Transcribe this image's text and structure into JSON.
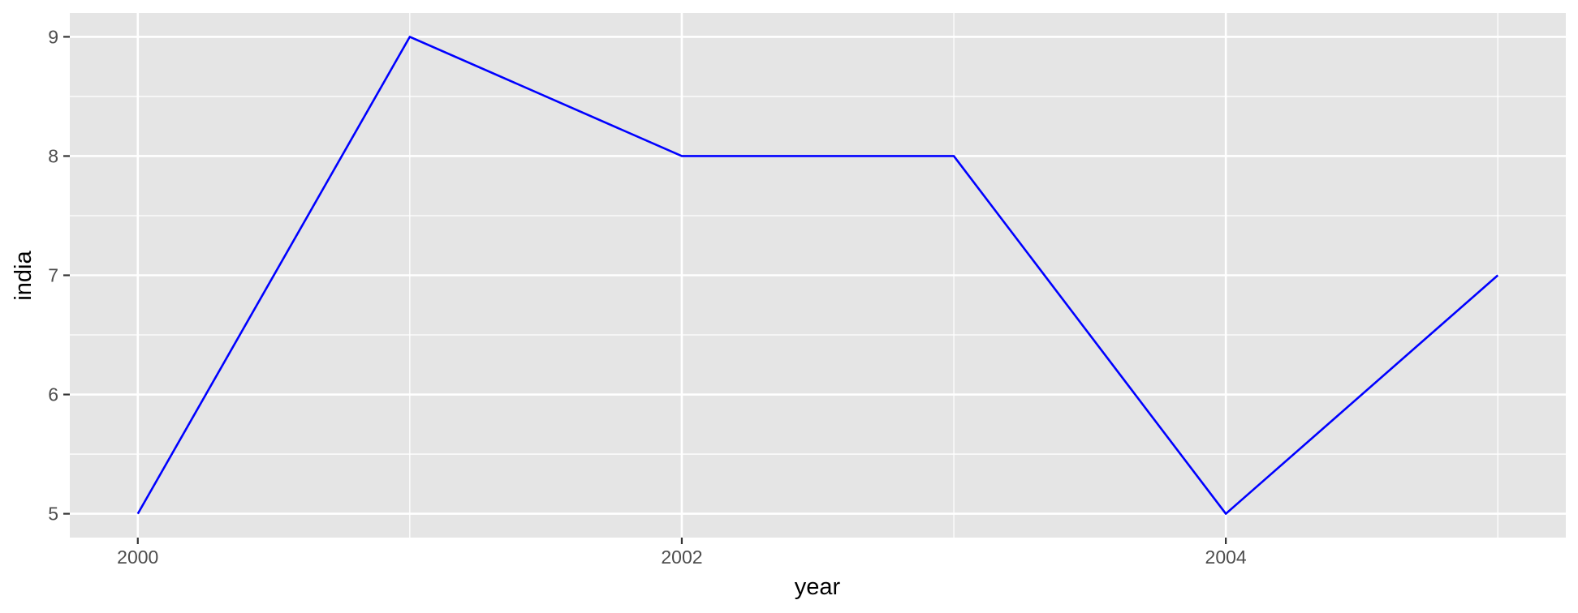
{
  "chart_data": {
    "type": "line",
    "title": "",
    "xlabel": "year",
    "ylabel": "india",
    "x": [
      2000,
      2001,
      2002,
      2003,
      2004,
      2005
    ],
    "series": [
      {
        "values": [
          5,
          9,
          8,
          8,
          5,
          7
        ],
        "color": "#0000ff"
      }
    ],
    "xlim": [
      1999.75,
      2005.25
    ],
    "ylim": [
      4.8,
      9.2
    ],
    "x_ticks": [
      2000,
      2002,
      2004
    ],
    "x_tick_labels": [
      "2000",
      "2002",
      "2004"
    ],
    "y_ticks": [
      5,
      6,
      7,
      8,
      9
    ],
    "y_tick_labels": [
      "5",
      "6",
      "7",
      "8",
      "9"
    ],
    "grid": true,
    "panel_background": "#e5e5e5",
    "grid_color": "#ffffff"
  }
}
